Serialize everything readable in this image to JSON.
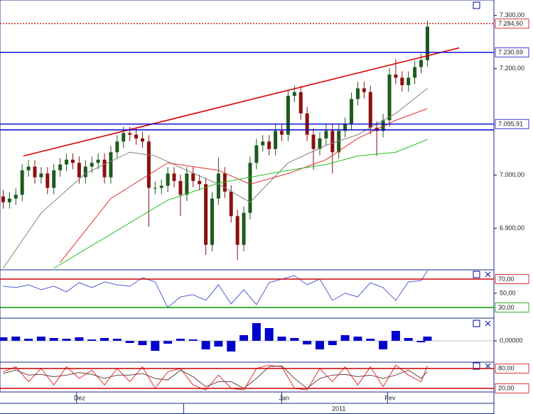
{
  "chart_data": [
    {
      "type": "candlestick",
      "xlim": [
        -0.5,
        77.5
      ],
      "ylim": [
        6822,
        7329
      ],
      "yticks": [
        {
          "value": 7300,
          "label": "7.300,00"
        },
        {
          "value": 7200,
          "label": "7.200,00"
        },
        {
          "value": 7000,
          "label": "7.000,00"
        },
        {
          "value": 6900,
          "label": "6.900,00"
        }
      ],
      "xticks": [
        {
          "value": 11.6,
          "label": "Dez"
        },
        {
          "value": 44,
          "label": "Jan"
        },
        {
          "value": 60.7,
          "label": "Fev"
        }
      ],
      "year_ticks": [
        {
          "value": 28.5,
          "label": "2011"
        }
      ],
      "up_color": "#1e5a1e",
      "down_color": "#8b1010",
      "open": [
        6960,
        6949,
        6956,
        6963,
        7009,
        7016,
        6996,
        7003,
        6976,
        7009,
        7020,
        7029,
        7023,
        6996,
        7016,
        7023,
        7029,
        6996,
        7043,
        7063,
        7079,
        7076,
        7069,
        7063,
        6976,
        6976,
        6980,
        7003,
        6989,
        6963,
        7003,
        6989,
        6983,
        6869,
        6956,
        7003,
        6969,
        6923,
        6869,
        6929,
        7023,
        7056,
        7063,
        7049,
        7083,
        7076,
        7149,
        7156,
        7116,
        7076,
        7049,
        7069,
        7083,
        7043,
        7083,
        7096,
        7143,
        7163,
        7156,
        7089,
        7083,
        7103,
        7189,
        7183,
        7169,
        7183,
        7203,
        7216
      ],
      "high": [
        6972,
        6968,
        6975,
        7021,
        7028,
        7028,
        7015,
        7015,
        7021,
        7032,
        7041,
        7041,
        7035,
        7028,
        7035,
        7041,
        7041,
        7055,
        7075,
        7091,
        7091,
        7088,
        7081,
        7075,
        6988,
        6992,
        7015,
        7015,
        7001,
        7015,
        7015,
        7001,
        6995,
        6968,
        7033,
        7015,
        6981,
        6935,
        6941,
        7035,
        7068,
        7075,
        7075,
        7095,
        7095,
        7161,
        7168,
        7168,
        7128,
        7088,
        7081,
        7095,
        7095,
        7095,
        7108,
        7155,
        7175,
        7175,
        7168,
        7101,
        7115,
        7201,
        7218,
        7195,
        7195,
        7215,
        7228,
        7291
      ],
      "low": [
        6937,
        6937,
        6944,
        6951,
        6997,
        6984,
        6984,
        6964,
        6964,
        6997,
        7008,
        7011,
        6984,
        6984,
        7004,
        7011,
        6984,
        6984,
        7031,
        7051,
        7064,
        7057,
        7051,
        6903,
        6964,
        6964,
        6968,
        6977,
        6923,
        6951,
        6977,
        6971,
        6850,
        6857,
        6944,
        6957,
        6911,
        6840,
        6857,
        6917,
        7011,
        7044,
        7037,
        7037,
        7064,
        7064,
        7137,
        7104,
        7064,
        7010,
        7037,
        7057,
        7003,
        7031,
        7071,
        7084,
        7131,
        7144,
        7077,
        7036,
        7071,
        7091,
        7171,
        7157,
        7157,
        7171,
        7191,
        7204
      ],
      "close": [
        6949,
        6956,
        6963,
        7009,
        7016,
        6996,
        7003,
        6976,
        7009,
        7020,
        7029,
        7023,
        6996,
        7016,
        7023,
        7029,
        6996,
        7043,
        7063,
        7079,
        7076,
        7069,
        7063,
        6976,
        6976,
        6980,
        7003,
        6989,
        6963,
        7003,
        6989,
        6983,
        6869,
        6956,
        7003,
        6969,
        6923,
        6869,
        6929,
        7023,
        7056,
        7063,
        7049,
        7083,
        7076,
        7149,
        7156,
        7116,
        7076,
        7049,
        7069,
        7083,
        7043,
        7083,
        7096,
        7143,
        7163,
        7156,
        7089,
        7083,
        7103,
        7189,
        7183,
        7169,
        7183,
        7203,
        7216,
        7279
      ],
      "series": [
        {
          "color": "#808080",
          "x": [
            0,
            6,
            13,
            20,
            24,
            29,
            34,
            39,
            45,
            51,
            56,
            62,
            67
          ],
          "values": [
            6825,
            6929,
            7003,
            7043,
            7036,
            7009,
            6983,
            6949,
            7023,
            7056,
            7076,
            7116,
            7163
          ]
        },
        {
          "color": "#e03030",
          "x": [
            9,
            17,
            26,
            34,
            39,
            45,
            51,
            56,
            62,
            67
          ],
          "values": [
            6836,
            6956,
            7023,
            7009,
            6983,
            7003,
            7029,
            7069,
            7103,
            7125
          ]
        },
        {
          "color": "#22c022",
          "x": [
            8,
            17,
            26,
            34,
            39,
            45,
            51,
            56,
            62,
            67
          ],
          "values": [
            6825,
            6889,
            6953,
            6985,
            6996,
            7009,
            7020,
            7036,
            7043,
            7067
          ]
        }
      ],
      "trendline": {
        "color": "#e00000",
        "x": [
          3.2,
          72
        ],
        "values": [
          7036,
          7239
        ]
      },
      "levels": [
        {
          "value": 7284.6,
          "label": "7.284,60",
          "color": "#cc0000",
          "dash": true
        },
        {
          "value": 7230.69,
          "label": "7.230,69",
          "color": "#0000cc",
          "dash": false
        },
        {
          "value": 7095.91,
          "label": "7.095,91",
          "color": "#0000cc",
          "dash": false
        },
        {
          "value": 7085,
          "color": "#0000cc",
          "dash": false
        }
      ]
    },
    {
      "type": "line",
      "ylim": [
        15,
        83
      ],
      "yticks": [
        {
          "value": 50,
          "label": "50,00"
        }
      ],
      "levels": [
        {
          "value": 70,
          "label": "70,00",
          "color": "#cc0000",
          "dash": false
        },
        {
          "value": 30,
          "label": "30,00",
          "color": "#009900",
          "dash": false
        }
      ],
      "series": [
        {
          "color": "#5060d0",
          "x": [
            0,
            2,
            4,
            6,
            8,
            10,
            12,
            14,
            16,
            18,
            20,
            22,
            24,
            26,
            28,
            30,
            32,
            34,
            36,
            38,
            40,
            42,
            44,
            46,
            48,
            50,
            52,
            54,
            56,
            58,
            60,
            62,
            64,
            66,
            67
          ],
          "values": [
            60,
            58,
            62,
            55,
            60,
            52,
            65,
            58,
            66,
            62,
            60,
            72,
            66,
            30,
            45,
            48,
            40,
            62,
            35,
            55,
            34,
            65,
            70,
            75,
            62,
            70,
            40,
            50,
            45,
            65,
            58,
            40,
            66,
            68,
            82
          ]
        }
      ]
    },
    {
      "type": "bar",
      "ylim": [
        -30,
        32
      ],
      "yticks": [
        {
          "value": 0,
          "label": "0,00000"
        }
      ],
      "series": [
        {
          "color": "#0000cc",
          "x": [
            0,
            2,
            4,
            6,
            8,
            10,
            12,
            14,
            16,
            18,
            20,
            22,
            24,
            26,
            28,
            30,
            32,
            34,
            36,
            38,
            40,
            42,
            44,
            46,
            48,
            50,
            52,
            54,
            56,
            58,
            60,
            62,
            64,
            66,
            67
          ],
          "values": [
            5,
            6,
            3,
            6,
            4,
            3,
            5,
            2,
            4,
            3,
            -3,
            -6,
            -14,
            -4,
            3,
            2,
            -12,
            -8,
            -15,
            8,
            25,
            18,
            6,
            4,
            -5,
            -12,
            -6,
            8,
            6,
            3,
            -12,
            14,
            4,
            -2,
            6
          ]
        }
      ]
    },
    {
      "type": "line",
      "ylim": [
        9,
        99
      ],
      "levels": [
        {
          "value": 80,
          "label": "80,00",
          "color": "#cc0000",
          "dash": false
        },
        {
          "value": 20,
          "label": "20,00",
          "color": "#cc0000",
          "dash": false
        }
      ],
      "series": [
        {
          "color": "#e03030",
          "x": [
            0,
            2,
            4,
            6,
            8,
            10,
            12,
            14,
            16,
            18,
            20,
            22,
            24,
            26,
            28,
            30,
            32,
            34,
            36,
            38,
            40,
            42,
            44,
            46,
            48,
            50,
            52,
            54,
            56,
            58,
            60,
            62,
            64,
            66,
            67
          ],
          "values": [
            70,
            85,
            40,
            80,
            30,
            85,
            50,
            75,
            30,
            80,
            40,
            85,
            20,
            70,
            80,
            30,
            15,
            60,
            20,
            15,
            80,
            90,
            85,
            20,
            15,
            80,
            40,
            85,
            30,
            85,
            25,
            90,
            60,
            40,
            88
          ]
        },
        {
          "color": "#704040",
          "x": [
            0,
            2,
            4,
            6,
            8,
            10,
            12,
            14,
            16,
            18,
            20,
            22,
            24,
            26,
            28,
            30,
            32,
            34,
            36,
            38,
            40,
            42,
            44,
            46,
            48,
            50,
            52,
            54,
            56,
            58,
            60,
            62,
            64,
            66,
            67
          ],
          "values": [
            65,
            75,
            60,
            62,
            55,
            60,
            68,
            62,
            50,
            60,
            60,
            65,
            50,
            45,
            75,
            55,
            25,
            40,
            40,
            20,
            50,
            85,
            88,
            50,
            20,
            50,
            60,
            62,
            55,
            60,
            50,
            60,
            75,
            50,
            70
          ]
        }
      ]
    }
  ]
}
